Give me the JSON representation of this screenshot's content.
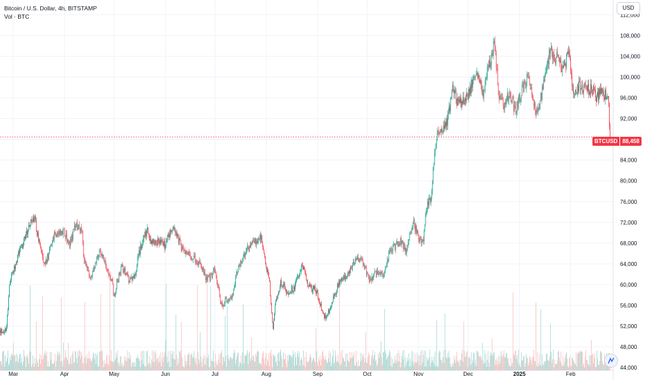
{
  "legend": {
    "title": "Bitcoin / U.S. Dollar, 4h, BITSTAMP",
    "volume": "Vol · BTC"
  },
  "currency_button": "USD",
  "price_tag": {
    "symbol": "BTCUSD",
    "value": "88,458"
  },
  "icons": {
    "logo": "tradingview-logo-icon"
  },
  "colors": {
    "up": "#089981",
    "down": "#f23645",
    "up_vol": "#80cbc4",
    "down_vol": "#f7a9a7",
    "grid": "#f0f3fa"
  },
  "chart_data": {
    "type": "candlestick",
    "title": "Bitcoin / U.S. Dollar, 4h, BITSTAMP",
    "ylabel": "USD",
    "ylim": [
      43500,
      113500
    ],
    "y_ticks": [
      44000,
      48000,
      52000,
      56000,
      60000,
      64000,
      68000,
      72000,
      76000,
      80000,
      84000,
      88000,
      92000,
      96000,
      100000,
      104000,
      108000,
      112000
    ],
    "y_tick_labels": [
      "44,000",
      "48,000",
      "52,000",
      "56,000",
      "60,000",
      "64,000",
      "68,000",
      "72,000",
      "76,000",
      "80,000",
      "84,000",
      "88,000",
      "92,000",
      "96,000",
      "100,000",
      "104,000",
      "108,000",
      "112,000"
    ],
    "x_ticks": [
      {
        "label": "Mar",
        "date": "2024-03-01",
        "bold": false
      },
      {
        "label": "Apr",
        "date": "2024-04-01",
        "bold": false
      },
      {
        "label": "May",
        "date": "2024-05-01",
        "bold": false
      },
      {
        "label": "Jun",
        "date": "2024-06-01",
        "bold": false
      },
      {
        "label": "Jul",
        "date": "2024-07-01",
        "bold": false
      },
      {
        "label": "Aug",
        "date": "2024-08-01",
        "bold": false
      },
      {
        "label": "Sep",
        "date": "2024-09-01",
        "bold": false
      },
      {
        "label": "Oct",
        "date": "2024-10-01",
        "bold": false
      },
      {
        "label": "Nov",
        "date": "2024-11-01",
        "bold": false
      },
      {
        "label": "Dec",
        "date": "2024-12-01",
        "bold": false
      },
      {
        "label": "2025",
        "date": "2025-01-01",
        "bold": true
      },
      {
        "label": "Feb",
        "date": "2025-02-01",
        "bold": false
      }
    ],
    "x_range": [
      "2024-02-22",
      "2025-02-25"
    ],
    "last_price": 88458,
    "price_path": [
      [
        "2024-02-22",
        51200
      ],
      [
        "2024-02-26",
        51000
      ],
      [
        "2024-02-28",
        60500
      ],
      [
        "2024-03-01",
        62500
      ],
      [
        "2024-03-05",
        66500
      ],
      [
        "2024-03-08",
        68500
      ],
      [
        "2024-03-11",
        71500
      ],
      [
        "2024-03-14",
        73000
      ],
      [
        "2024-03-17",
        68000
      ],
      [
        "2024-03-20",
        63500
      ],
      [
        "2024-03-23",
        66000
      ],
      [
        "2024-03-26",
        70000
      ],
      [
        "2024-03-29",
        69500
      ],
      [
        "2024-04-01",
        70500
      ],
      [
        "2024-04-04",
        67500
      ],
      [
        "2024-04-08",
        71500
      ],
      [
        "2024-04-12",
        70000
      ],
      [
        "2024-04-13",
        64500
      ],
      [
        "2024-04-17",
        61500
      ],
      [
        "2024-04-20",
        64500
      ],
      [
        "2024-04-23",
        66500
      ],
      [
        "2024-04-27",
        63000
      ],
      [
        "2024-04-30",
        60500
      ],
      [
        "2024-05-01",
        57500
      ],
      [
        "2024-05-03",
        60500
      ],
      [
        "2024-05-06",
        63500
      ],
      [
        "2024-05-10",
        61000
      ],
      [
        "2024-05-14",
        61500
      ],
      [
        "2024-05-16",
        66000
      ],
      [
        "2024-05-21",
        70500
      ],
      [
        "2024-05-24",
        68000
      ],
      [
        "2024-05-28",
        68500
      ],
      [
        "2024-06-01",
        67500
      ],
      [
        "2024-06-05",
        71000
      ],
      [
        "2024-06-07",
        70500
      ],
      [
        "2024-06-11",
        67000
      ],
      [
        "2024-06-14",
        66500
      ],
      [
        "2024-06-18",
        65000
      ],
      [
        "2024-06-22",
        64000
      ],
      [
        "2024-06-25",
        61500
      ],
      [
        "2024-06-28",
        61000
      ],
      [
        "2024-07-01",
        63000
      ],
      [
        "2024-07-05",
        56000
      ],
      [
        "2024-07-08",
        57000
      ],
      [
        "2024-07-12",
        58000
      ],
      [
        "2024-07-15",
        63500
      ],
      [
        "2024-07-18",
        65000
      ],
      [
        "2024-07-22",
        67500
      ],
      [
        "2024-07-26",
        68500
      ],
      [
        "2024-07-29",
        69500
      ],
      [
        "2024-07-31",
        65000
      ],
      [
        "2024-08-03",
        60500
      ],
      [
        "2024-08-05",
        51500
      ],
      [
        "2024-08-07",
        57000
      ],
      [
        "2024-08-10",
        60500
      ],
      [
        "2024-08-14",
        58500
      ],
      [
        "2024-08-18",
        59500
      ],
      [
        "2024-08-23",
        63500
      ],
      [
        "2024-08-27",
        59500
      ],
      [
        "2024-08-31",
        59000
      ],
      [
        "2024-09-06",
        53500
      ],
      [
        "2024-09-10",
        56500
      ],
      [
        "2024-09-14",
        60500
      ],
      [
        "2024-09-18",
        61500
      ],
      [
        "2024-09-22",
        63500
      ],
      [
        "2024-09-27",
        65500
      ],
      [
        "2024-09-30",
        63500
      ],
      [
        "2024-10-03",
        60500
      ],
      [
        "2024-10-07",
        62500
      ],
      [
        "2024-10-11",
        62000
      ],
      [
        "2024-10-15",
        66500
      ],
      [
        "2024-10-21",
        68500
      ],
      [
        "2024-10-25",
        66500
      ],
      [
        "2024-10-29",
        72000
      ],
      [
        "2024-11-01",
        69500
      ],
      [
        "2024-11-04",
        67800
      ],
      [
        "2024-11-06",
        75000
      ],
      [
        "2024-11-09",
        76500
      ],
      [
        "2024-11-11",
        86500
      ],
      [
        "2024-11-13",
        89500
      ],
      [
        "2024-11-16",
        90500
      ],
      [
        "2024-11-19",
        92000
      ],
      [
        "2024-11-22",
        98500
      ],
      [
        "2024-11-25",
        94500
      ],
      [
        "2024-11-28",
        95500
      ],
      [
        "2024-12-02",
        97000
      ],
      [
        "2024-12-05",
        101000
      ],
      [
        "2024-12-08",
        100000
      ],
      [
        "2024-12-10",
        96500
      ],
      [
        "2024-12-13",
        101000
      ],
      [
        "2024-12-17",
        106500
      ],
      [
        "2024-12-20",
        95500
      ],
      [
        "2024-12-23",
        94500
      ],
      [
        "2024-12-26",
        96500
      ],
      [
        "2024-12-30",
        93500
      ],
      [
        "2025-01-03",
        98000
      ],
      [
        "2025-01-07",
        100000
      ],
      [
        "2025-01-10",
        94000
      ],
      [
        "2025-01-13",
        93500
      ],
      [
        "2025-01-16",
        100000
      ],
      [
        "2025-01-20",
        105500
      ],
      [
        "2025-01-22",
        103500
      ],
      [
        "2025-01-25",
        104500
      ],
      [
        "2025-01-27",
        101000
      ],
      [
        "2025-01-31",
        104500
      ],
      [
        "2025-02-03",
        96500
      ],
      [
        "2025-02-06",
        98500
      ],
      [
        "2025-02-10",
        97500
      ],
      [
        "2025-02-14",
        97800
      ],
      [
        "2025-02-17",
        96000
      ],
      [
        "2025-02-20",
        97500
      ],
      [
        "2025-02-22",
        96500
      ],
      [
        "2025-02-24",
        95000
      ],
      [
        "2025-02-25",
        88458
      ]
    ],
    "volume_ylim": [
      0,
      18000
    ]
  }
}
